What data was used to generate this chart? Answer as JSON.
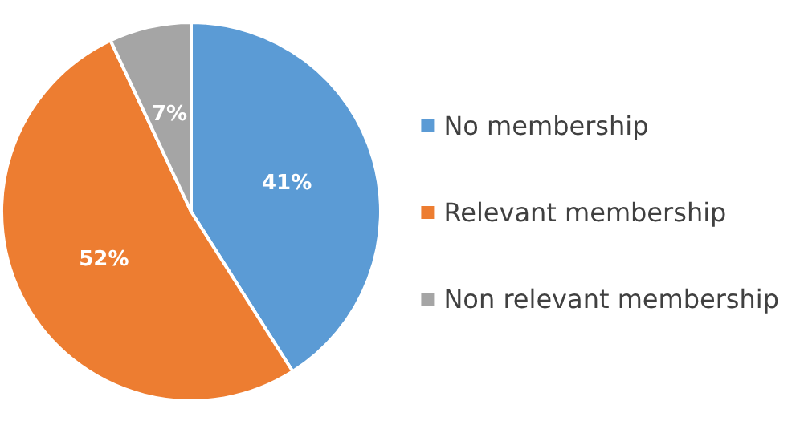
{
  "chart_data": {
    "type": "pie",
    "categories": [
      "No membership",
      "Relevant membership",
      "Non relevant membership"
    ],
    "values": [
      41,
      52,
      7
    ],
    "colors": [
      "#5b9bd5",
      "#ed7d31",
      "#a5a5a5"
    ],
    "value_labels": [
      "41%",
      "52%",
      "7%"
    ],
    "legend": "right"
  }
}
